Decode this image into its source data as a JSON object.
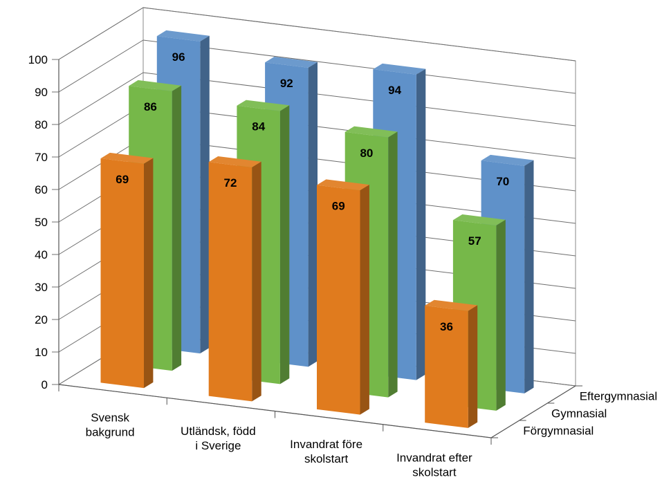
{
  "chart_data": {
    "type": "bar",
    "subtype": "3d-column-grouped-by-depth",
    "categories": [
      "Svensk bakgrund",
      "Utländsk, född i Sverige",
      "Invandrat före skolstart",
      "Invandrat efter skolstart"
    ],
    "category_lines": [
      [
        "Svensk",
        "bakgrund"
      ],
      [
        "Utländsk, född",
        "i Sverige"
      ],
      [
        "Invandrat före",
        "skolstart"
      ],
      [
        "Invandrat efter",
        "skolstart"
      ]
    ],
    "series": [
      {
        "name": "Förgymnasial",
        "values": [
          69,
          72,
          69,
          36
        ],
        "color": "#E07B1E"
      },
      {
        "name": "Gymnasial",
        "values": [
          86,
          84,
          80,
          57
        ],
        "color": "#76B849"
      },
      {
        "name": "Eftergymnasial",
        "values": [
          96,
          92,
          94,
          70
        ],
        "color": "#5F91C9"
      }
    ],
    "y_ticks": [
      "0",
      "10",
      "20",
      "30",
      "40",
      "50",
      "60",
      "70",
      "80",
      "90",
      "100"
    ],
    "ylim": [
      0,
      100
    ],
    "grid": true,
    "title": "",
    "xlabel": "",
    "ylabel": ""
  }
}
